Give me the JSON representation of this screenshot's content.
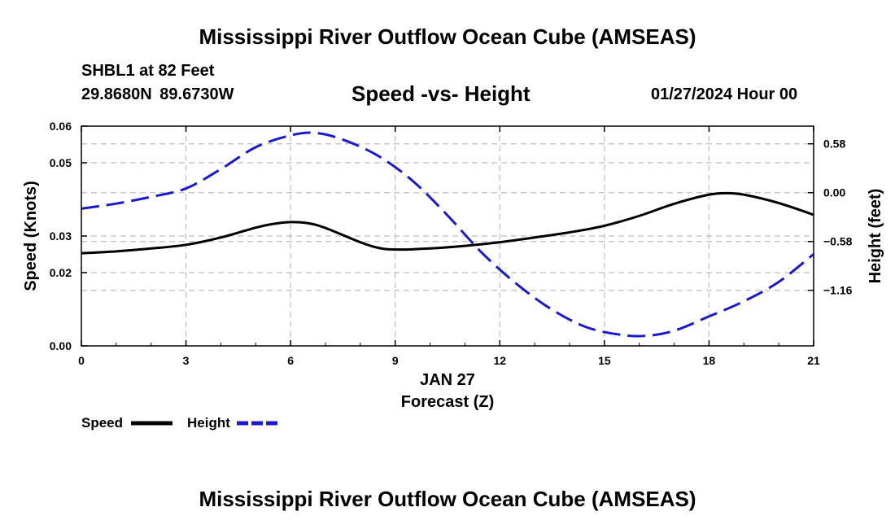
{
  "header": {
    "title": "Mississippi River Outflow Ocean Cube (AMSEAS)",
    "station": "SHBL1 at 82 Feet",
    "coords": "29.8680N  89.6730W",
    "subtitle": "Speed -vs- Height",
    "datetime": "01/27/2024 Hour 00"
  },
  "footer": {
    "title": "Mississippi River Outflow Ocean Cube (AMSEAS)"
  },
  "chart_data": {
    "type": "line",
    "title": "Speed -vs- Height",
    "xlabel": "Forecast (Z)",
    "x_date_label": "JAN 27",
    "xlim": [
      0,
      21
    ],
    "xticks": [
      0,
      3,
      6,
      9,
      12,
      15,
      18,
      21
    ],
    "ylabel_left": "Speed (Knots)",
    "ylim_left": [
      0,
      0.06
    ],
    "yticks_left": [
      0.0,
      0.02,
      0.03,
      0.05,
      0.06
    ],
    "yticks_left_labels": [
      "0.00",
      "0.02",
      "0.03",
      "0.05",
      "0.06"
    ],
    "ylabel_right": "Height (feet)",
    "ylim_right": [
      -1.82,
      0.79
    ],
    "yticks_right": [
      -1.16,
      -0.58,
      0.0,
      0.58
    ],
    "yticks_right_labels": [
      "−1.16",
      "−0.58",
      "0.00",
      "0.58"
    ],
    "grid": true,
    "legend_position": "bottom-left",
    "series": [
      {
        "name": "Speed",
        "axis": "left",
        "color": "#000000",
        "dash": "solid",
        "x": [
          0,
          1,
          2,
          3,
          4,
          5,
          5.5,
          6,
          6.5,
          7,
          8,
          8.5,
          9,
          10,
          11,
          12,
          13,
          14,
          15,
          16,
          17,
          18,
          18.5,
          19,
          20,
          21
        ],
        "values": [
          0.0253,
          0.0258,
          0.0266,
          0.0276,
          0.0296,
          0.0323,
          0.0333,
          0.0338,
          0.0335,
          0.0322,
          0.0283,
          0.0268,
          0.0263,
          0.0266,
          0.0273,
          0.0283,
          0.0296,
          0.031,
          0.0328,
          0.0355,
          0.0388,
          0.0413,
          0.0417,
          0.0413,
          0.039,
          0.0358
        ]
      },
      {
        "name": "Height",
        "axis": "right",
        "color": "#1a1acc",
        "dash": "dashed",
        "x": [
          0,
          1,
          2,
          3,
          4,
          5,
          6,
          6.7,
          7.5,
          8.5,
          9.5,
          10.5,
          11.5,
          12.5,
          13.5,
          14.5,
          15.5,
          16.2,
          17,
          18,
          19,
          20,
          21
        ],
        "values": [
          -0.19,
          -0.13,
          -0.05,
          0.05,
          0.28,
          0.54,
          0.68,
          0.71,
          0.63,
          0.44,
          0.14,
          -0.27,
          -0.72,
          -1.09,
          -1.39,
          -1.6,
          -1.69,
          -1.7,
          -1.64,
          -1.47,
          -1.29,
          -1.06,
          -0.73
        ]
      }
    ]
  }
}
